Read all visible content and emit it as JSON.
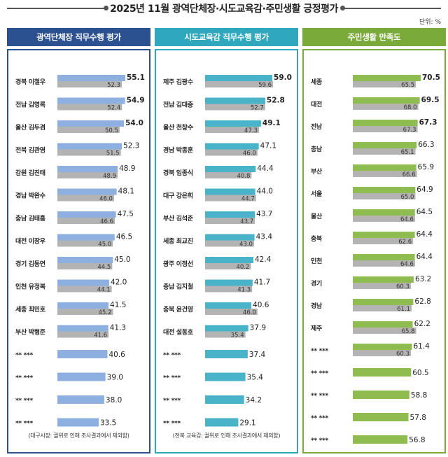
{
  "title": "2025년 11월 광역단체장·시도교육감·주민생활 긍정평가",
  "unit": "단위: %",
  "colors": {
    "gray_bar": "#b3b3b3",
    "panel1_accent": "#2c5191",
    "panel1_bar": "#8eb0e0",
    "panel2_accent": "#2fa8bd",
    "panel2_bar": "#49b3c9",
    "panel3_accent": "#7aaa3a",
    "panel3_bar": "#8fbc4e"
  },
  "chart_data": [
    {
      "type": "bar",
      "orientation": "horizontal",
      "title": "광역단체장 직무수행 평가",
      "categories": [
        "경북 이철우",
        "전남 김영록",
        "울산 김두겸",
        "전북 김관영",
        "강원 김진태",
        "경남 박완수",
        "충남 김태흠",
        "대전 이장우",
        "경기 김동연",
        "인천 유정복",
        "세종 최민호",
        "부산 박형준",
        "** ***",
        "** ***",
        "** ***",
        "** ***"
      ],
      "series": [
        {
          "values": [
            55.1,
            54.9,
            54.0,
            52.3,
            48.9,
            48.1,
            47.5,
            46.5,
            45.0,
            42.0,
            41.5,
            41.3,
            40.6,
            39.0,
            38.0,
            33.5
          ]
        },
        {
          "values": [
            52.3,
            52.4,
            50.5,
            51.5,
            48.9,
            46.0,
            46.6,
            45.0,
            44.5,
            44.1,
            45.2,
            41.6,
            null,
            null,
            null,
            null
          ]
        }
      ],
      "note": "(대구시장: 궐위로 인해  조사결과에서 제외함)"
    },
    {
      "type": "bar",
      "orientation": "horizontal",
      "title": "시도교육감 직무수행 평가",
      "categories": [
        "제주 김광수",
        "전남 김대중",
        "울산 천창수",
        "경남 박종훈",
        "경북 임종식",
        "대구 강은희",
        "부산 김석준",
        "세종 최교진",
        "광주 이정선",
        "충남 김지철",
        "충북 윤건영",
        "대전 설동호",
        "** ***",
        "** ***",
        "** ***",
        "** ***"
      ],
      "series": [
        {
          "values": [
            59.0,
            52.8,
            49.1,
            47.1,
            44.4,
            44.0,
            43.7,
            43.4,
            42.4,
            41.7,
            40.6,
            37.9,
            37.4,
            35.4,
            34.2,
            29.1
          ]
        },
        {
          "values": [
            59.6,
            52.7,
            47.3,
            46.0,
            40.8,
            44.7,
            43.7,
            43.0,
            40.2,
            41.3,
            46.0,
            35.4,
            null,
            null,
            null,
            null
          ]
        }
      ],
      "note": "(전북 교육감: 궐위로 인해  조사결과에서 제외함)"
    },
    {
      "type": "bar",
      "orientation": "horizontal",
      "title": "주민생활 만족도",
      "categories": [
        "세종",
        "대전",
        "전남",
        "충남",
        "부산",
        "서울",
        "울산",
        "충북",
        "인천",
        "경기",
        "경남",
        "제주",
        "** ***",
        "** ***",
        "** ***",
        "** ***",
        "** ***"
      ],
      "series": [
        {
          "values": [
            70.5,
            69.5,
            67.3,
            66.3,
            65.9,
            64.9,
            64.5,
            64.4,
            64.4,
            63.2,
            62.8,
            62.2,
            61.4,
            60.5,
            58.8,
            57.8,
            56.8
          ]
        },
        {
          "values": [
            65.5,
            68.0,
            67.3,
            65.1,
            66.6,
            65.0,
            64.6,
            62.6,
            64.6,
            60.3,
            61.1,
            65.8,
            60.3,
            null,
            null,
            null,
            null
          ]
        }
      ],
      "note": ""
    }
  ]
}
